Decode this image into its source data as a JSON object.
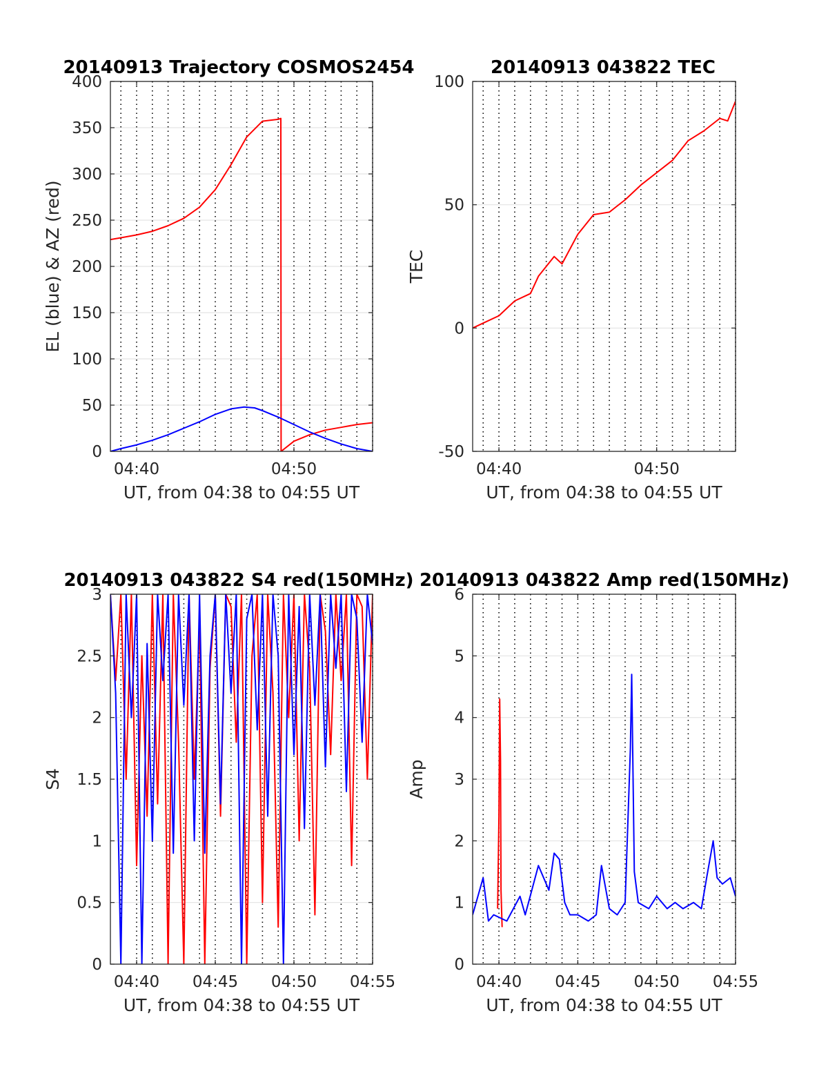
{
  "chart_data": [
    {
      "type": "line",
      "title": "20140913 Trajectory COSMOS2454",
      "xlabel": "UT, from 04:38 to 04:55 UT",
      "ylabel": "EL (blue) & AZ (red)",
      "xlim": [
        "04:38:20",
        "04:55:00"
      ],
      "ylim": [
        0,
        400
      ],
      "xticks": [
        "04:40",
        "04:50"
      ],
      "yticks": [
        "0",
        "50",
        "100",
        "150",
        "200",
        "250",
        "300",
        "350",
        "400"
      ],
      "grid": true,
      "series": [
        {
          "color": "#ff0000",
          "x": [
            "04:38:20",
            "04:39:00",
            "04:40:00",
            "04:41:00",
            "04:42:00",
            "04:43:00",
            "04:44:00",
            "04:45:00",
            "04:46:00",
            "04:47:00",
            "04:48:00",
            "04:49:00",
            "04:49:10",
            "04:49:11",
            "04:50:00",
            "04:51:00",
            "04:52:00",
            "04:53:00",
            "04:54:00",
            "04:55:00"
          ],
          "values": [
            229,
            231,
            234,
            238,
            244,
            252,
            264,
            283,
            310,
            340,
            357,
            359,
            360,
            0,
            11,
            18,
            23,
            26,
            29,
            31
          ]
        },
        {
          "color": "#0000ff",
          "x": [
            "04:38:20",
            "04:39:00",
            "04:40:00",
            "04:41:00",
            "04:42:00",
            "04:43:00",
            "04:44:00",
            "04:45:00",
            "04:46:00",
            "04:46:50",
            "04:47:30",
            "04:48:00",
            "04:49:00",
            "04:50:00",
            "04:51:00",
            "04:52:00",
            "04:53:00",
            "04:54:00",
            "04:55:00"
          ],
          "values": [
            0,
            3,
            7,
            12,
            18,
            25,
            32,
            40,
            46,
            48,
            47,
            44,
            37,
            29,
            21,
            14,
            8,
            3,
            0
          ]
        }
      ]
    },
    {
      "type": "line",
      "title": "20140913 043822 TEC",
      "xlabel": "UT, from 04:38 to 04:55 UT",
      "ylabel": "TEC",
      "xlim": [
        "04:38:20",
        "04:55:00"
      ],
      "ylim": [
        -50,
        100
      ],
      "xticks": [
        "04:40",
        "04:50"
      ],
      "yticks": [
        "-50",
        "0",
        "50",
        "100"
      ],
      "grid": true,
      "series": [
        {
          "color": "#ff0000",
          "x": [
            "04:38:20",
            "04:39:00",
            "04:40:00",
            "04:41:00",
            "04:42:00",
            "04:42:30",
            "04:43:00",
            "04:43:30",
            "04:44:00",
            "04:45:00",
            "04:46:00",
            "04:47:00",
            "04:48:00",
            "04:49:00",
            "04:50:00",
            "04:51:00",
            "04:52:00",
            "04:53:00",
            "04:54:00",
            "04:54:30",
            "04:55:00"
          ],
          "values": [
            0,
            2,
            5,
            11,
            14,
            21,
            25,
            29,
            26,
            38,
            46,
            47,
            52,
            58,
            63,
            68,
            76,
            80,
            85,
            84,
            92
          ]
        }
      ]
    },
    {
      "type": "line",
      "title": "20140913 043822 S4 red(150MHz)",
      "xlabel": "UT, from 04:38 to 04:55 UT",
      "ylabel": "S4",
      "xlim": [
        "04:38:20",
        "04:55:00"
      ],
      "ylim": [
        0,
        3
      ],
      "xticks": [
        "04:40",
        "04:45",
        "04:50",
        "04:55"
      ],
      "yticks": [
        "0",
        "0.5",
        "1",
        "1.5",
        "2",
        "2.5",
        "3"
      ],
      "grid": true,
      "series": [
        {
          "color": "#ff0000",
          "x": [
            "04:38:20",
            "04:38:40",
            "04:39:00",
            "04:39:20",
            "04:39:40",
            "04:40:00",
            "04:40:20",
            "04:40:40",
            "04:41:00",
            "04:41:20",
            "04:41:40",
            "04:42:00",
            "04:42:20",
            "04:42:40",
            "04:43:00",
            "04:43:20",
            "04:43:40",
            "04:44:00",
            "04:44:20",
            "04:44:40",
            "04:45:00",
            "04:45:20",
            "04:45:40",
            "04:46:00",
            "04:46:20",
            "04:46:40",
            "04:47:00",
            "04:47:20",
            "04:47:40",
            "04:48:00",
            "04:48:20",
            "04:48:40",
            "04:49:00",
            "04:49:20",
            "04:49:40",
            "04:50:00",
            "04:50:20",
            "04:50:40",
            "04:51:00",
            "04:51:20",
            "04:51:40",
            "04:52:00",
            "04:52:20",
            "04:52:40",
            "04:53:00",
            "04:53:20",
            "04:53:40",
            "04:54:00",
            "04:54:20",
            "04:54:40",
            "04:55:00"
          ],
          "values": [
            3,
            2.3,
            3,
            1.5,
            3,
            0.8,
            2.5,
            1.2,
            3,
            1.3,
            3,
            0,
            3,
            1.8,
            0,
            3,
            1.5,
            2.8,
            0,
            2.4,
            3,
            1.2,
            3,
            2.9,
            1.8,
            3,
            0,
            2.5,
            3,
            0.5,
            3,
            2.2,
            0.3,
            3,
            2.0,
            3,
            1.0,
            3,
            2.4,
            0.4,
            3,
            2.7,
            1.7,
            3,
            2.3,
            3,
            0.8,
            3,
            2.9,
            1.5,
            3
          ]
        },
        {
          "color": "#0000ff",
          "x": [
            "04:38:20",
            "04:38:40",
            "04:39:00",
            "04:39:20",
            "04:39:40",
            "04:40:00",
            "04:40:20",
            "04:40:40",
            "04:41:00",
            "04:41:20",
            "04:41:40",
            "04:42:00",
            "04:42:20",
            "04:42:40",
            "04:43:00",
            "04:43:20",
            "04:43:40",
            "04:44:00",
            "04:44:20",
            "04:44:40",
            "04:45:00",
            "04:45:20",
            "04:45:40",
            "04:46:00",
            "04:46:20",
            "04:46:40",
            "04:47:00",
            "04:47:20",
            "04:47:40",
            "04:48:00",
            "04:48:20",
            "04:48:40",
            "04:49:00",
            "04:49:20",
            "04:49:40",
            "04:50:00",
            "04:50:20",
            "04:50:40",
            "04:51:00",
            "04:51:20",
            "04:51:40",
            "04:52:00",
            "04:52:20",
            "04:52:40",
            "04:53:00",
            "04:53:20",
            "04:53:40",
            "04:54:00",
            "04:54:20",
            "04:54:40",
            "04:55:00"
          ],
          "values": [
            3,
            2.2,
            0,
            3,
            2.0,
            3,
            0,
            2.6,
            1.0,
            3,
            2.3,
            3,
            0.9,
            3,
            2.1,
            3,
            1.0,
            3,
            0.9,
            2.5,
            3,
            1.3,
            3,
            2.2,
            3,
            0,
            2.8,
            3,
            1.9,
            3,
            1.2,
            3,
            2.5,
            0,
            3,
            1.7,
            2.9,
            1.1,
            3,
            2.1,
            3,
            1.6,
            3,
            2.4,
            3,
            1.4,
            3,
            2.8,
            1.8,
            3,
            2.6
          ]
        }
      ]
    },
    {
      "type": "line",
      "title": "20140913 043822 Amp red(150MHz)",
      "xlabel": "UT, from 04:38 to 04:55 UT",
      "ylabel": "Amp",
      "xlim": [
        "04:38:20",
        "04:55:00"
      ],
      "ylim": [
        0,
        6
      ],
      "xticks": [
        "04:40",
        "04:45",
        "04:50",
        "04:55"
      ],
      "yticks": [
        "0",
        "1",
        "2",
        "3",
        "4",
        "5",
        "6"
      ],
      "grid": true,
      "series": [
        {
          "color": "#ff0000",
          "x": [
            "04:39:55",
            "04:40:00",
            "04:40:03",
            "04:40:06",
            "04:40:08",
            "04:40:12"
          ],
          "values": [
            0.9,
            2.4,
            4.3,
            3.3,
            1.2,
            0.6
          ]
        },
        {
          "color": "#0000ff",
          "x": [
            "04:38:20",
            "04:39:00",
            "04:39:20",
            "04:39:40",
            "04:40:30",
            "04:41:20",
            "04:41:40",
            "04:42:30",
            "04:43:10",
            "04:43:30",
            "04:43:50",
            "04:44:10",
            "04:44:30",
            "04:45:00",
            "04:45:40",
            "04:46:10",
            "04:46:30",
            "04:47:00",
            "04:47:30",
            "04:48:00",
            "04:48:20",
            "04:48:25",
            "04:48:35",
            "04:48:50",
            "04:49:30",
            "04:50:00",
            "04:50:40",
            "04:51:10",
            "04:51:40",
            "04:52:20",
            "04:52:50",
            "04:53:10",
            "04:53:35",
            "04:53:50",
            "04:54:10",
            "04:54:40",
            "04:55:00"
          ],
          "values": [
            0.8,
            1.4,
            0.7,
            0.8,
            0.7,
            1.1,
            0.8,
            1.6,
            1.2,
            1.8,
            1.7,
            1.0,
            0.8,
            0.8,
            0.7,
            0.8,
            1.6,
            0.9,
            0.8,
            1.0,
            3.5,
            4.7,
            1.5,
            1.0,
            0.9,
            1.1,
            0.9,
            1.0,
            0.9,
            1.0,
            0.9,
            1.4,
            2.0,
            1.4,
            1.3,
            1.4,
            1.1
          ]
        }
      ]
    }
  ]
}
